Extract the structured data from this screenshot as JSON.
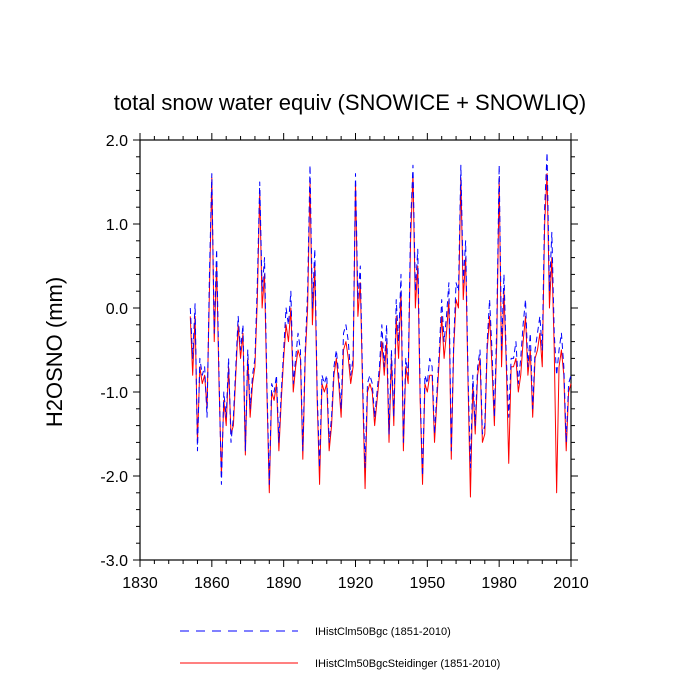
{
  "chart_data": {
    "type": "line",
    "title": "total snow water equiv (SNOWICE + SNOWLIQ)",
    "xlabel": "",
    "ylabel": "H2OSNO  (mm)",
    "xlim": [
      1830,
      2010
    ],
    "ylim": [
      -3.0,
      2.0
    ],
    "x_ticks": [
      1830,
      1860,
      1890,
      1920,
      1950,
      1980,
      2010
    ],
    "y_ticks": [
      {
        "value": 2.0,
        "label": "2.0"
      },
      {
        "value": 1.0,
        "label": "1.0"
      },
      {
        "value": 0.0,
        "label": "0.0"
      },
      {
        "value": -1.0,
        "label": "-1.0"
      },
      {
        "value": -2.0,
        "label": "-2.0"
      },
      {
        "value": -3.0,
        "label": "-3.0"
      }
    ],
    "x_start": 1851,
    "x_step": 1,
    "series": [
      {
        "name": "IHistClm50Bgc (1851-2010)",
        "color": "#0000ff",
        "dash": "dashed",
        "values": [
          0.0,
          -0.6,
          0.05,
          -1.7,
          -0.6,
          -0.8,
          -0.7,
          -1.3,
          0.4,
          1.6,
          -0.3,
          0.7,
          -0.8,
          -2.1,
          -1.0,
          -1.3,
          -0.6,
          -1.6,
          -1.3,
          -0.7,
          -0.1,
          -0.5,
          -0.2,
          -1.7,
          -0.5,
          -1.2,
          -0.8,
          -0.6,
          0.3,
          1.5,
          0.2,
          0.6,
          -0.9,
          -2.1,
          -0.9,
          -1.0,
          -0.8,
          -1.6,
          -1.0,
          -0.5,
          0.0,
          -0.2,
          0.2,
          -0.9,
          -0.6,
          -0.3,
          -0.5,
          -1.7,
          -0.5,
          0.2,
          1.7,
          0.0,
          0.7,
          -1.0,
          -1.9,
          -0.8,
          -0.9,
          -0.8,
          -1.6,
          -1.3,
          -0.7,
          -0.5,
          -0.8,
          -1.2,
          -0.3,
          -0.2,
          -0.4,
          -0.8,
          -0.6,
          1.6,
          0.1,
          0.5,
          -0.9,
          -1.9,
          -0.9,
          -0.8,
          -0.9,
          -1.3,
          -1.0,
          -0.7,
          -0.2,
          -0.7,
          -0.2,
          -1.5,
          -0.5,
          -1.3,
          0.1,
          -0.4,
          0.4,
          -1.6,
          -0.6,
          -0.8,
          1.0,
          1.7,
          0.2,
          0.7,
          -1.0,
          -2.0,
          -0.8,
          -0.9,
          -0.6,
          -0.7,
          -1.5,
          -1.0,
          -0.5,
          0.1,
          -0.4,
          -0.1,
          0.3,
          -1.7,
          -0.4,
          0.3,
          0.2,
          1.7,
          0.3,
          0.8,
          -0.8,
          -1.9,
          -0.8,
          -1.4,
          -0.7,
          -0.5,
          -1.5,
          -1.4,
          -0.4,
          0.1,
          -0.5,
          -1.3,
          -0.2,
          1.7,
          -0.5,
          0.4,
          -0.6,
          -1.3,
          -0.6,
          -0.6,
          -0.4,
          -0.9,
          -0.6,
          -0.2,
          0.1,
          -0.7,
          -0.3,
          -1.2,
          -0.5,
          -0.3,
          -0.1,
          -0.5,
          1.2,
          1.85,
          0.2,
          0.9,
          -0.3,
          -0.8,
          -0.5,
          -0.3,
          -0.7,
          -1.6,
          -0.9,
          -0.8
        ]
      },
      {
        "name": "IHistClm50BgcSteidinger (1851-2010)",
        "color": "#ff0000",
        "dash": "solid",
        "values": [
          -0.1,
          -0.8,
          -0.1,
          -1.6,
          -0.7,
          -0.9,
          -0.8,
          -1.2,
          0.2,
          1.55,
          -0.4,
          0.5,
          -0.9,
          -2.0,
          -1.1,
          -1.4,
          -0.7,
          -1.5,
          -1.4,
          -0.8,
          -0.2,
          -0.6,
          -0.3,
          -1.75,
          -0.6,
          -1.3,
          -0.9,
          -0.7,
          0.1,
          1.4,
          0.0,
          0.4,
          -1.0,
          -2.2,
          -1.0,
          -1.1,
          -0.9,
          -1.7,
          -1.1,
          -0.6,
          -0.2,
          -0.4,
          0.0,
          -1.0,
          -0.7,
          -0.5,
          -0.6,
          -1.8,
          -0.6,
          0.0,
          1.5,
          -0.2,
          0.5,
          -1.1,
          -2.1,
          -0.9,
          -1.0,
          -0.9,
          -1.7,
          -1.4,
          -0.8,
          -0.6,
          -0.9,
          -1.3,
          -0.5,
          -0.4,
          -0.6,
          -0.9,
          -0.7,
          1.5,
          -0.1,
          0.3,
          -1.0,
          -2.15,
          -1.0,
          -0.9,
          -1.0,
          -1.4,
          -1.1,
          -0.8,
          -0.4,
          -0.8,
          -0.4,
          -1.6,
          -0.6,
          -1.4,
          -0.1,
          -0.6,
          0.2,
          -1.7,
          -0.7,
          -0.9,
          0.8,
          1.6,
          0.0,
          0.5,
          -1.1,
          -2.1,
          -0.9,
          -1.0,
          -0.8,
          -0.8,
          -1.6,
          -1.1,
          -0.6,
          -0.1,
          -0.6,
          -0.3,
          0.1,
          -1.8,
          -0.5,
          0.1,
          0.0,
          1.55,
          0.1,
          0.6,
          -0.9,
          -2.25,
          -0.9,
          -1.5,
          -0.8,
          -0.6,
          -1.6,
          -1.5,
          -0.5,
          -0.1,
          -0.7,
          -1.4,
          -0.4,
          1.55,
          -0.7,
          0.2,
          -0.7,
          -1.85,
          -0.7,
          -0.7,
          -0.6,
          -1.0,
          -0.8,
          -0.4,
          -0.1,
          -0.8,
          -0.5,
          -1.3,
          -0.6,
          -0.5,
          -0.3,
          -0.7,
          1.0,
          1.6,
          0.0,
          0.6,
          -0.5,
          -2.2,
          -0.7,
          -0.5,
          -0.8,
          -1.7,
          -1.0,
          -0.9
        ]
      }
    ],
    "legend_placement": "bottom",
    "grid": false
  }
}
